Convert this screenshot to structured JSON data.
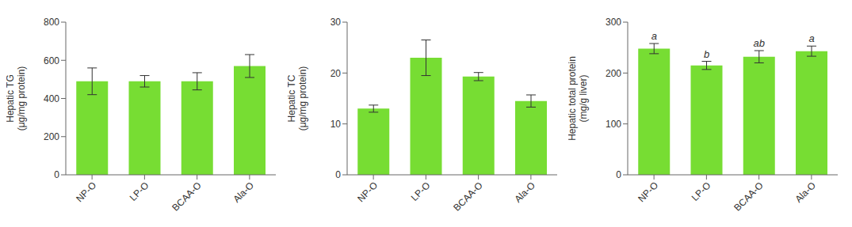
{
  "chart_data": [
    {
      "type": "bar",
      "categories": [
        "NP-O",
        "LP-O",
        "BCAA-O",
        "Ala-O"
      ],
      "ylabel": "Hepatic TG\n(μg/mg protein)",
      "ylim": [
        0,
        800
      ],
      "yticks": [
        0,
        200,
        400,
        600,
        800
      ],
      "values": [
        490,
        490,
        490,
        570
      ],
      "errors": [
        70,
        30,
        45,
        60
      ],
      "color": "#77dd33"
    },
    {
      "type": "bar",
      "categories": [
        "NP-O",
        "LP-O",
        "BCAA-O",
        "Ala-O"
      ],
      "ylabel": "Hepatic TC\n(μg/mg protein)",
      "ylim": [
        0,
        30
      ],
      "yticks": [
        0,
        10,
        20,
        30
      ],
      "values": [
        13,
        23,
        19.3,
        14.5
      ],
      "errors": [
        0.7,
        3.5,
        0.8,
        1.2
      ],
      "color": "#77dd33"
    },
    {
      "type": "bar",
      "categories": [
        "NP-O",
        "LP-O",
        "BCAA-O",
        "Ala-O"
      ],
      "ylabel": "Hepatic total protein\n(mg/g liver)",
      "ylim": [
        0,
        300
      ],
      "yticks": [
        0,
        100,
        200,
        300
      ],
      "values": [
        248,
        215,
        232,
        243
      ],
      "errors": [
        10,
        8,
        12,
        10
      ],
      "annotations": [
        "a",
        "b",
        "ab",
        "a"
      ],
      "color": "#77dd33"
    }
  ]
}
